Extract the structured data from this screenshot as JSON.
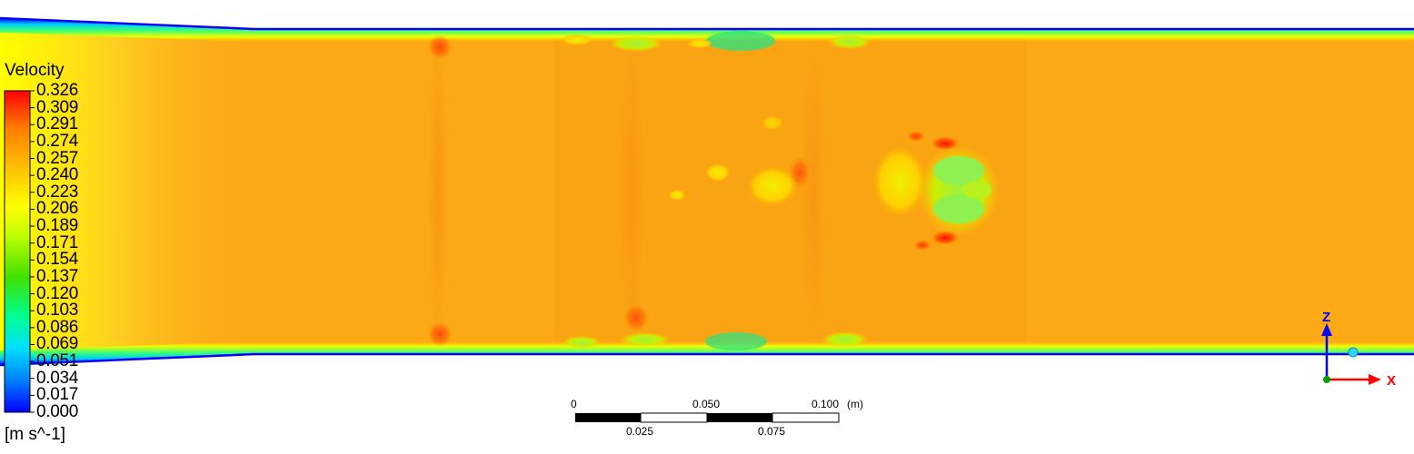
{
  "legend": {
    "title": "Velocity",
    "units": "[m s^-1]",
    "ticks": [
      "0.326",
      "0.309",
      "0.291",
      "0.274",
      "0.257",
      "0.240",
      "0.223",
      "0.206",
      "0.189",
      "0.171",
      "0.154",
      "0.137",
      "0.120",
      "0.103",
      "0.086",
      "0.069",
      "0.051",
      "0.034",
      "0.017",
      "0.000"
    ],
    "colors": [
      "#0000ff",
      "#0080ff",
      "#00e0ff",
      "#00ff80",
      "#40e000",
      "#c0ff00",
      "#ffff00",
      "#ffc000",
      "#ff8000",
      "#ff0000"
    ]
  },
  "scale_bar": {
    "top_labels": [
      "0",
      "0.050",
      "0.100"
    ],
    "unit": "(m)",
    "bottom_labels": [
      "0.025",
      "0.075"
    ]
  },
  "axes": {
    "z_label": "Z",
    "x_label": "X",
    "z_color": "#0000ff",
    "x_color": "#ff0000",
    "origin_color": "#00a000"
  },
  "field": {
    "base_color": "#fca915",
    "inlet_color": "#ffff00",
    "wall_color": "#0000ff"
  }
}
